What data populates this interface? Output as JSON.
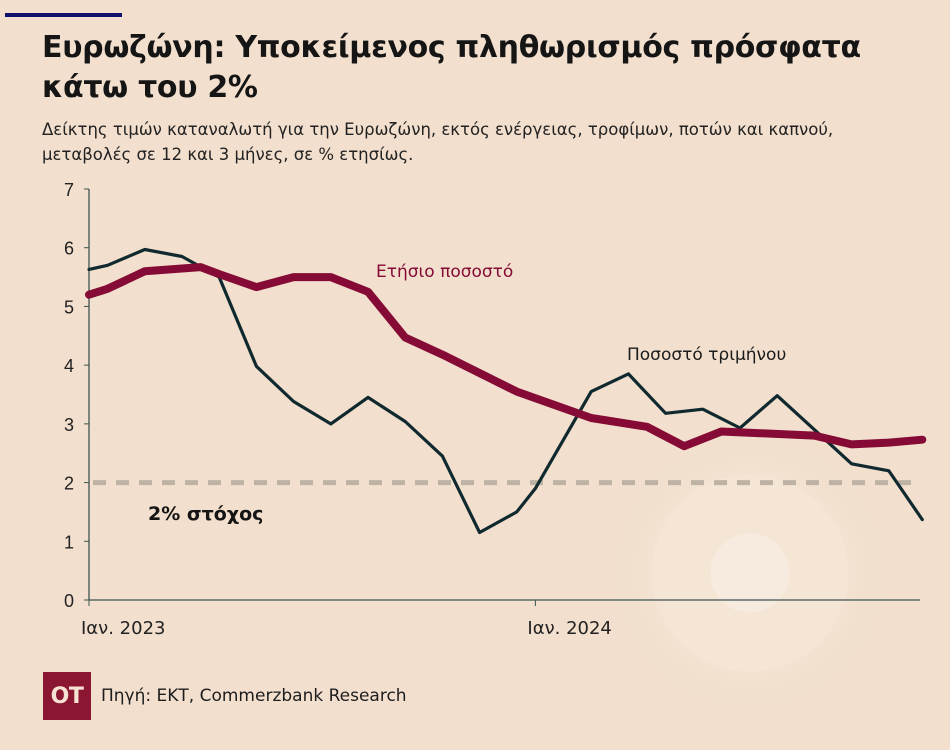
{
  "header": {
    "title": "Ευρωζώνη: Υποκείμενος πληθωρισμός πρόσφατα κάτω του 2%",
    "subtitle": "Δείκτης τιμών καταναλωτή για την Ευρωζώνη, εκτός ενέργειας, τροφίμων, ποτών και καπνού, μεταβολές σε 12 και 3 μήνες, σε % ετησίως."
  },
  "footer": {
    "logo_text": "OT",
    "source": "Πηγή: ΕΚΤ, Commerzbank Research"
  },
  "colors": {
    "background": "#f2dfcd",
    "annual": "#850a35",
    "quarterly": "#10292e",
    "target": "#bdb2a4",
    "axis": "#3d5450",
    "accent_bar": "#0f0f6e",
    "logo": "#8b1631"
  },
  "chart_data": {
    "type": "line",
    "title": "Ευρωζώνη: Υποκείμενος πληθωρισμός πρόσφατα κάτω του 2%",
    "xlabel": "",
    "ylabel": "",
    "ylim": [
      0,
      7
    ],
    "yticks": [
      0,
      1,
      2,
      3,
      4,
      5,
      6,
      7
    ],
    "xtick_labels": [
      {
        "label": "Ιαν. 2023",
        "index": 0
      },
      {
        "label": "Ιαν. 2024",
        "index": 12
      }
    ],
    "x_range": [
      0,
      22.4
    ],
    "grid": false,
    "series": [
      {
        "name": "Ετήσιο ποσοστό",
        "label_text": "Ετήσιο ποσοστό",
        "x": [
          0,
          0.5,
          1.5,
          3.0,
          3.5,
          4.5,
          5.5,
          6.5,
          7.5,
          8.5,
          9.5,
          11.5,
          13.5,
          15.0,
          16.0,
          17.0,
          19.5,
          20.5,
          21.5,
          22.4
        ],
        "values": [
          5.2,
          5.3,
          5.6,
          5.67,
          5.55,
          5.33,
          5.5,
          5.5,
          5.25,
          4.47,
          4.18,
          3.55,
          3.1,
          2.95,
          2.62,
          2.87,
          2.8,
          2.65,
          2.68,
          2.73
        ]
      },
      {
        "name": "Ποσοστό τριμήνου",
        "label_text": "Ποσοστό τριμήνου",
        "x": [
          0,
          0.5,
          1.5,
          2.5,
          3.5,
          4.5,
          5.5,
          6.5,
          7.5,
          8.5,
          9.5,
          10.5,
          11.5,
          12.0,
          13.5,
          14.5,
          15.5,
          16.5,
          17.5,
          18.5,
          19.5,
          20.5,
          21.5,
          22.4
        ],
        "values": [
          5.63,
          5.7,
          5.97,
          5.85,
          5.5,
          3.98,
          3.38,
          3.0,
          3.45,
          3.04,
          2.45,
          1.15,
          1.5,
          1.9,
          3.55,
          3.85,
          3.18,
          3.25,
          2.93,
          3.48,
          2.9,
          2.32,
          2.2,
          1.37
        ]
      }
    ],
    "reference_lines": [
      {
        "name": "2% στόχος",
        "label_text": "2% στόχος",
        "value": 2,
        "style": "dashed"
      }
    ]
  }
}
